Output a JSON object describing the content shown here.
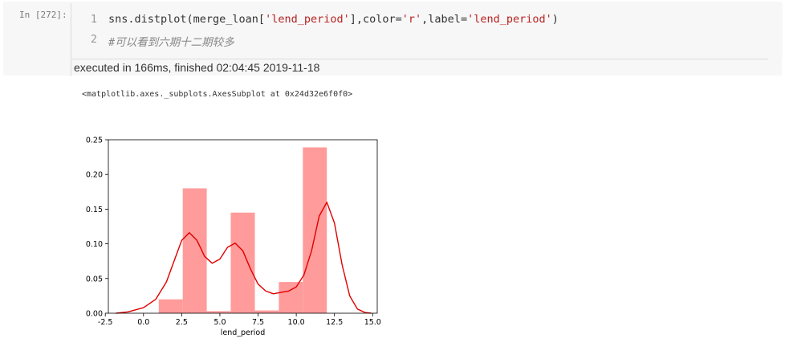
{
  "cell": {
    "prompt": "In  [272]:",
    "lines": [
      {
        "number": "1",
        "parts": [
          {
            "text": "sns.distplot(merge_loan[",
            "kind": "code"
          },
          {
            "text": "'lend_period'",
            "kind": "str"
          },
          {
            "text": "],color=",
            "kind": "code"
          },
          {
            "text": "'r'",
            "kind": "str"
          },
          {
            "text": ",label=",
            "kind": "code"
          },
          {
            "text": "'lend_period'",
            "kind": "str"
          },
          {
            "text": ")",
            "kind": "code"
          }
        ]
      },
      {
        "number": "2",
        "parts": [
          {
            "text": "#可以看到六期十二期较多",
            "kind": "comment"
          }
        ]
      }
    ],
    "execution_info": "executed in 166ms, finished 02:04:45 2019-11-18"
  },
  "output": {
    "repr": "<matplotlib.axes._subplots.AxesSubplot at 0x24d32e6f0f0>"
  },
  "chart_data": {
    "type": "bar",
    "xlabel": "lend_period",
    "ylabel": "",
    "title": "",
    "xlim": [
      -2.3,
      15.3
    ],
    "ylim": [
      0,
      0.25
    ],
    "xticks": [
      -2.5,
      0.0,
      2.5,
      5.0,
      7.5,
      10.0,
      12.5,
      15.0
    ],
    "xtick_labels": [
      "-2.5",
      "0.0",
      "2.5",
      "5.0",
      "7.5",
      "10.0",
      "12.5",
      "15.0"
    ],
    "yticks": [
      0.0,
      0.05,
      0.1,
      0.15,
      0.2,
      0.25
    ],
    "ytick_labels": [
      "0.00",
      "0.05",
      "0.10",
      "0.15",
      "0.20",
      "0.25"
    ],
    "bars": [
      {
        "x0": 1.0,
        "x1": 2.57,
        "value": 0.02
      },
      {
        "x0": 2.57,
        "x1": 4.14,
        "value": 0.18
      },
      {
        "x0": 4.14,
        "x1": 5.71,
        "value": 0.003
      },
      {
        "x0": 5.71,
        "x1": 7.29,
        "value": 0.145
      },
      {
        "x0": 7.29,
        "x1": 8.86,
        "value": 0.004
      },
      {
        "x0": 8.86,
        "x1": 10.43,
        "value": 0.045
      },
      {
        "x0": 10.43,
        "x1": 12.0,
        "value": 0.239
      }
    ],
    "kde": {
      "x": [
        -1.8,
        -1.0,
        0.0,
        0.8,
        1.5,
        2.0,
        2.5,
        3.0,
        3.5,
        4.0,
        4.5,
        5.0,
        5.5,
        6.0,
        6.5,
        7.0,
        7.5,
        8.0,
        8.5,
        9.0,
        9.5,
        10.0,
        10.5,
        11.0,
        11.5,
        12.0,
        12.5,
        13.0,
        13.5,
        14.0,
        14.5,
        14.9
      ],
      "y": [
        0.0,
        0.002,
        0.008,
        0.02,
        0.045,
        0.075,
        0.105,
        0.116,
        0.105,
        0.082,
        0.072,
        0.078,
        0.095,
        0.101,
        0.09,
        0.064,
        0.042,
        0.032,
        0.028,
        0.03,
        0.032,
        0.038,
        0.055,
        0.09,
        0.14,
        0.16,
        0.13,
        0.07,
        0.025,
        0.006,
        0.001,
        0.0
      ]
    },
    "colors": {
      "bar": "#ff9b9b",
      "kde": "#e00000"
    }
  }
}
